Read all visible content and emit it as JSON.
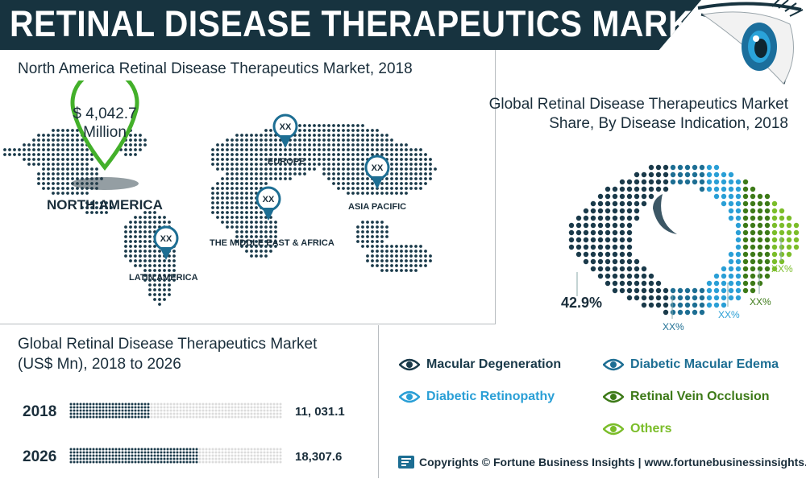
{
  "title": "RETINAL DISEASE THERAPEUTICS MARKET",
  "map": {
    "heading": "North America Retinal Disease Therapeutics Market, 2018",
    "callout": {
      "value": "$ 4,042.7",
      "unit": "Million"
    },
    "regions": [
      {
        "name": "NORTH AMERICA",
        "value": ""
      },
      {
        "name": "EUROPE",
        "value": "XX"
      },
      {
        "name": "ASIA PACIFIC",
        "value": "XX"
      },
      {
        "name": "THE MIDDLE EAST & AFRICA",
        "value": "XX"
      },
      {
        "name": "LATIN AMERICA",
        "value": "XX"
      }
    ]
  },
  "share": {
    "heading": "Global Retinal Disease Therapeutics Market Share, By Disease Indication, 2018"
  },
  "bars_heading": "Global Retinal Disease Therapeutics Market (US$ Mn), 2018 to 2026",
  "legend": [
    {
      "label": "Macular Degeneration",
      "color": "#1a3a4a"
    },
    {
      "label": "Diabetic Macular Edema",
      "color": "#1d6e93"
    },
    {
      "label": "Diabetic Retinopathy",
      "color": "#2a9fd6"
    },
    {
      "label": "Retinal Vein Occlusion",
      "color": "#3d7a18"
    },
    {
      "label": "Others",
      "color": "#7bbd2a"
    }
  ],
  "footer": {
    "text": "Copyrights © Fortune Business Insights | www.fortunebusinessinsights.com"
  },
  "chart_data": [
    {
      "type": "pie",
      "title": "Global Retinal Disease Therapeutics Market Share, By Disease Indication, 2018",
      "categories": [
        "Macular Degeneration",
        "Diabetic Macular Edema",
        "Diabetic Retinopathy",
        "Retinal Vein Occlusion",
        "Others"
      ],
      "labels": [
        "42.9%",
        "XX%",
        "XX%",
        "XX%",
        "XX%"
      ],
      "values": [
        42.9,
        16,
        16,
        13,
        12.1
      ]
    },
    {
      "type": "bar",
      "title": "Global Retinal Disease Therapeutics Market (US$ Mn), 2018 to 2026",
      "categories": [
        "2018",
        "2026"
      ],
      "values": [
        11031.1,
        18307.6
      ],
      "value_labels": [
        "11, 031.1",
        "18,307.6"
      ],
      "xlabel": "",
      "ylabel": ""
    }
  ]
}
